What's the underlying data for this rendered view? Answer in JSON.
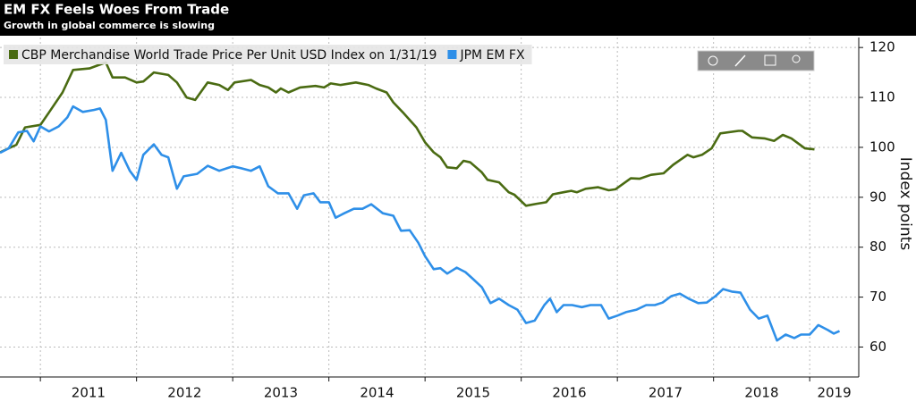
{
  "chart_data": {
    "type": "line",
    "title": "EM FX Feels Woes From Trade",
    "subtitle": "Growth in global commerce is slowing",
    "y_label": "Index points",
    "xlim": [
      2010.58,
      2019.51
    ],
    "xticks": [
      2011,
      2012,
      2013,
      2014,
      2015,
      2016,
      2017,
      2018,
      2019
    ],
    "ylim": [
      54,
      122
    ],
    "yticks": [
      60,
      70,
      80,
      90,
      100,
      110,
      120
    ],
    "grid": true,
    "legend": "top-left",
    "series": [
      {
        "name": "CBP Merchandise World Trade Price Per Unit USD Index on 1/31/19",
        "color": "#4a6b12",
        "x": [
          2010.58,
          2010.75,
          2010.84,
          2011.0,
          2011.09,
          2011.23,
          2011.34,
          2011.51,
          2011.68,
          2011.75,
          2011.88,
          2012.0,
          2012.07,
          2012.18,
          2012.33,
          2012.42,
          2012.52,
          2012.61,
          2012.74,
          2012.86,
          2012.95,
          2013.02,
          2013.19,
          2013.28,
          2013.37,
          2013.45,
          2013.5,
          2013.58,
          2013.7,
          2013.86,
          2013.95,
          2014.02,
          2014.12,
          2014.28,
          2014.41,
          2014.49,
          2014.6,
          2014.67,
          2014.77,
          2014.91,
          2015.0,
          2015.09,
          2015.16,
          2015.23,
          2015.33,
          2015.4,
          2015.47,
          2015.59,
          2015.65,
          2015.77,
          2015.87,
          2015.93,
          2016.05,
          2016.16,
          2016.26,
          2016.33,
          2016.44,
          2016.52,
          2016.58,
          2016.67,
          2016.8,
          2016.91,
          2016.98,
          2017.14,
          2017.23,
          2017.35,
          2017.48,
          2017.58,
          2017.73,
          2017.79,
          2017.88,
          2017.98,
          2018.07,
          2018.26,
          2018.3,
          2018.4,
          2018.53,
          2018.63,
          2018.72,
          2018.81,
          2018.95,
          2019.05
        ],
        "values": [
          99,
          100.5,
          104,
          104.5,
          107,
          111,
          115.5,
          115.8,
          117,
          114,
          114,
          113,
          113.2,
          115,
          114.5,
          113,
          110,
          109.5,
          113,
          112.5,
          111.5,
          113,
          113.5,
          112.5,
          112,
          111,
          111.8,
          111,
          112,
          112.3,
          112,
          112.8,
          112.5,
          113,
          112.5,
          111.8,
          111,
          109,
          107,
          104,
          101,
          99,
          98,
          96,
          95.8,
          97.3,
          97,
          95,
          93.5,
          93,
          91,
          90.5,
          88.3,
          88.7,
          89,
          90.6,
          91,
          91.3,
          91,
          91.7,
          92,
          91.4,
          91.6,
          93.8,
          93.7,
          94.5,
          94.8,
          96.5,
          98.5,
          98,
          98.5,
          99.8,
          102.8,
          103.3,
          103.3,
          102,
          101.8,
          101.3,
          102.5,
          101.8,
          99.8,
          99.6
        ]
      },
      {
        "name": "JPM EM FX",
        "color": "#2e8fe8",
        "x": [
          2010.58,
          2010.67,
          2010.77,
          2010.86,
          2010.93,
          2011.0,
          2011.09,
          2011.19,
          2011.28,
          2011.34,
          2011.44,
          2011.56,
          2011.62,
          2011.68,
          2011.75,
          2011.84,
          2011.93,
          2012.0,
          2012.07,
          2012.18,
          2012.26,
          2012.33,
          2012.42,
          2012.49,
          2012.63,
          2012.74,
          2012.86,
          2013.0,
          2013.09,
          2013.19,
          2013.28,
          2013.37,
          2013.47,
          2013.58,
          2013.67,
          2013.74,
          2013.84,
          2013.91,
          2014.0,
          2014.07,
          2014.16,
          2014.26,
          2014.35,
          2014.44,
          2014.56,
          2014.67,
          2014.75,
          2014.84,
          2014.93,
          2015.0,
          2015.09,
          2015.16,
          2015.23,
          2015.33,
          2015.42,
          2015.49,
          2015.59,
          2015.68,
          2015.77,
          2015.87,
          2015.96,
          2016.05,
          2016.14,
          2016.24,
          2016.3,
          2016.37,
          2016.44,
          2016.53,
          2016.63,
          2016.72,
          2016.83,
          2016.91,
          2017.0,
          2017.09,
          2017.2,
          2017.3,
          2017.39,
          2017.47,
          2017.56,
          2017.65,
          2017.74,
          2017.84,
          2017.93,
          2018.02,
          2018.1,
          2018.19,
          2018.28,
          2018.38,
          2018.47,
          2018.56,
          2018.66,
          2018.75,
          2018.84,
          2018.91,
          2019.0,
          2019.09,
          2019.19,
          2019.25,
          2019.31
        ],
        "values": [
          98.9,
          99.8,
          103,
          103.3,
          101.2,
          104.2,
          103.2,
          104.2,
          106,
          108.2,
          107.1,
          107.5,
          107.8,
          105.5,
          95.3,
          98.9,
          95.3,
          93.5,
          98.5,
          100.6,
          98.5,
          98,
          91.7,
          94.2,
          94.7,
          96.3,
          95.3,
          96.2,
          95.8,
          95.3,
          96.2,
          92.2,
          90.8,
          90.8,
          87.7,
          90.4,
          90.8,
          89,
          89,
          85.9,
          86.8,
          87.7,
          87.7,
          88.6,
          86.8,
          86.3,
          83.3,
          83.4,
          80.9,
          78.2,
          75.6,
          75.8,
          74.7,
          75.9,
          75,
          73.8,
          72,
          68.8,
          69.7,
          68.4,
          67.5,
          64.8,
          65.3,
          68.4,
          69.7,
          67,
          68.4,
          68.4,
          68,
          68.4,
          68.4,
          65.7,
          66.3,
          67,
          67.5,
          68.4,
          68.4,
          68.9,
          70.2,
          70.7,
          69.7,
          68.8,
          68.9,
          70.2,
          71.6,
          71.1,
          70.9,
          67.5,
          65.7,
          66.3,
          61.3,
          62.5,
          61.8,
          62.5,
          62.5,
          64.4,
          63.4,
          62.7,
          63.2
        ]
      }
    ]
  }
}
